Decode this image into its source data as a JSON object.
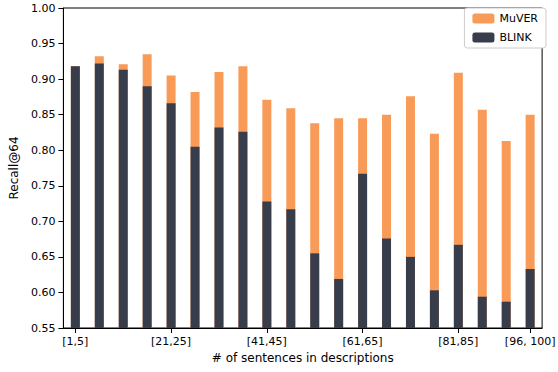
{
  "chart_data": {
    "type": "bar",
    "x_label": "# of sentences in descriptions",
    "y_label": "Recall@64",
    "categories": [
      "[1,5]",
      null,
      null,
      null,
      "[21,25]",
      null,
      null,
      null,
      "[41,45]",
      null,
      null,
      null,
      "[61,65]",
      null,
      null,
      null,
      "[81,85]",
      null,
      null,
      "[96, 100]"
    ],
    "series": [
      {
        "name": "MuVER",
        "color": "#f99b58",
        "values": [
          0.918,
          0.932,
          0.921,
          0.935,
          0.905,
          0.882,
          0.91,
          0.918,
          0.871,
          0.859,
          0.838,
          0.845,
          0.845,
          0.85,
          0.876,
          0.823,
          0.909,
          0.857,
          0.813,
          0.85
        ]
      },
      {
        "name": "BLINK",
        "color": "#383d4c",
        "values": [
          0.918,
          0.922,
          0.913,
          0.89,
          0.866,
          0.805,
          0.832,
          0.826,
          0.728,
          0.717,
          0.655,
          0.619,
          0.767,
          0.676,
          0.65,
          0.603,
          0.667,
          0.594,
          0.587,
          0.633
        ]
      }
    ],
    "ylim": [
      0.55,
      1.0
    ],
    "yticks": [
      {
        "value": 0.55,
        "label": "0.55"
      },
      {
        "value": 0.6,
        "label": "0.60"
      },
      {
        "value": 0.65,
        "label": "0.65"
      },
      {
        "value": 0.7,
        "label": "0.70"
      },
      {
        "value": 0.75,
        "label": "0.75"
      },
      {
        "value": 0.8,
        "label": "0.80"
      },
      {
        "value": 0.85,
        "label": "0.85"
      },
      {
        "value": 0.9,
        "label": "0.90"
      },
      {
        "value": 0.95,
        "label": "0.95"
      },
      {
        "value": 1.0,
        "label": "1.00"
      }
    ],
    "grid": false,
    "legend": "upper right",
    "stacked": false
  }
}
